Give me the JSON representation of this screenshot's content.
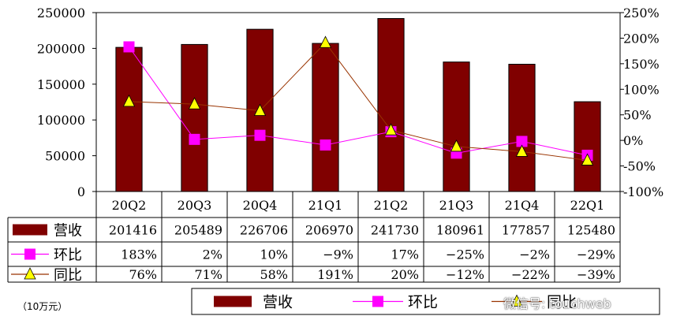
{
  "chart_data": {
    "type": "bar",
    "categories": [
      "20Q2",
      "20Q3",
      "20Q4",
      "21Q1",
      "21Q2",
      "21Q3",
      "21Q4",
      "22Q1"
    ],
    "series": [
      {
        "name": "营收",
        "kind": "bar",
        "axis": "left",
        "color": "#800000",
        "values": [
          201416,
          205489,
          226706,
          206970,
          241730,
          180961,
          177857,
          125480
        ]
      },
      {
        "name": "环比",
        "kind": "line",
        "axis": "right",
        "color": "#ff00ff",
        "marker": "square",
        "values": [
          183,
          2,
          10,
          -9,
          17,
          -25,
          -2,
          -29
        ]
      },
      {
        "name": "同比",
        "kind": "line",
        "axis": "right",
        "color": "#993300",
        "marker": "triangle",
        "marker_color": "#ffff00",
        "values": [
          76,
          71,
          58,
          191,
          20,
          -12,
          -22,
          -39
        ]
      }
    ],
    "table_rows": [
      {
        "label": "营收",
        "values": [
          "201416",
          "205489",
          "226706",
          "206970",
          "241730",
          "180961",
          "177857",
          "125480"
        ]
      },
      {
        "label": "环比",
        "values": [
          "183%",
          "2%",
          "10%",
          "-9%",
          "17%",
          "-25%",
          "-2%",
          "-29%"
        ]
      },
      {
        "label": "同比",
        "values": [
          "76%",
          "71%",
          "58%",
          "191%",
          "20%",
          "-12%",
          "-22%",
          "-39%"
        ]
      }
    ],
    "y_left": {
      "range": [
        0,
        250000
      ],
      "ticks": [
        "0",
        "50000",
        "100000",
        "150000",
        "200000",
        "250000"
      ]
    },
    "y_right": {
      "range": [
        -100,
        250
      ],
      "ticks": [
        "-100%",
        "-50%",
        "0%",
        "50%",
        "100%",
        "150%",
        "200%",
        "250%"
      ]
    },
    "grid": false,
    "legend_position": "bottom",
    "legend": [
      "营收",
      "环比",
      "同比"
    ]
  },
  "unit_note": "（10万元）",
  "watermark": "微信号: touchweb"
}
